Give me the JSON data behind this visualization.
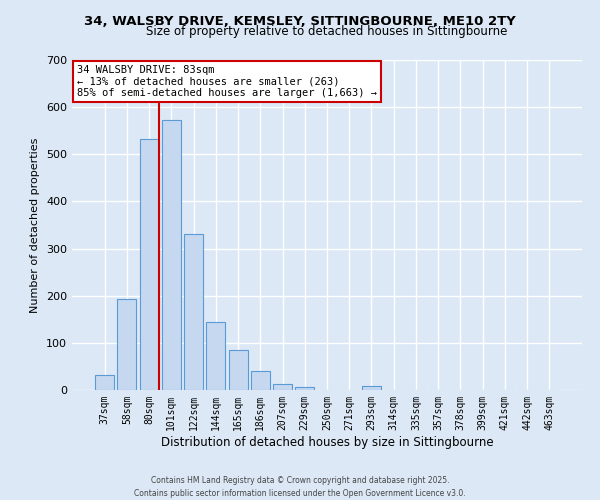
{
  "title1": "34, WALSBY DRIVE, KEMSLEY, SITTINGBOURNE, ME10 2TY",
  "title2": "Size of property relative to detached houses in Sittingbourne",
  "xlabel": "Distribution of detached houses by size in Sittingbourne",
  "ylabel": "Number of detached properties",
  "bar_labels": [
    "37sqm",
    "58sqm",
    "80sqm",
    "101sqm",
    "122sqm",
    "144sqm",
    "165sqm",
    "186sqm",
    "207sqm",
    "229sqm",
    "250sqm",
    "271sqm",
    "293sqm",
    "314sqm",
    "335sqm",
    "357sqm",
    "378sqm",
    "399sqm",
    "421sqm",
    "442sqm",
    "463sqm"
  ],
  "bar_values": [
    32,
    193,
    533,
    573,
    330,
    145,
    85,
    40,
    12,
    7,
    0,
    0,
    9,
    0,
    0,
    0,
    0,
    0,
    0,
    0,
    0
  ],
  "bar_color": "#c5d8f0",
  "bar_edge_color": "#5b9bd5",
  "vline_color": "#cc0000",
  "annotation_text": "34 WALSBY DRIVE: 83sqm\n← 13% of detached houses are smaller (263)\n85% of semi-detached houses are larger (1,663) →",
  "annotation_box_color": "#ffffff",
  "annotation_box_edge": "#cc0000",
  "bg_color": "#dce8f5",
  "plot_bg_color": "#dce8f5",
  "grid_color": "#ffffff",
  "ylim": [
    0,
    700
  ],
  "yticks": [
    0,
    100,
    200,
    300,
    400,
    500,
    600,
    700
  ],
  "footer1": "Contains HM Land Registry data © Crown copyright and database right 2025.",
  "footer2": "Contains public sector information licensed under the Open Government Licence v3.0."
}
